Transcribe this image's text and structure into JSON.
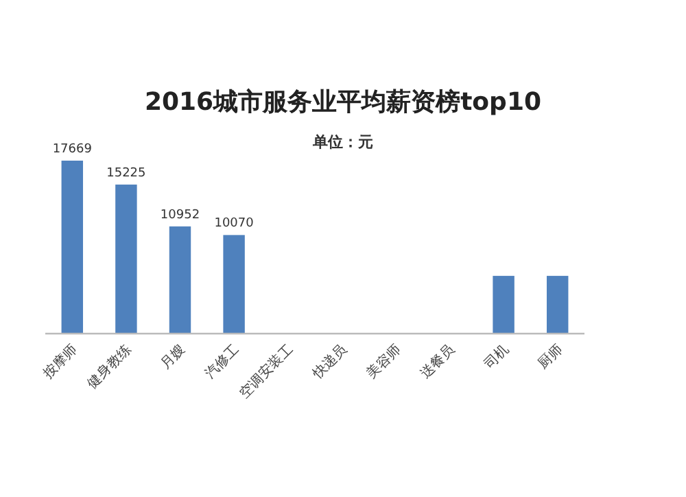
{
  "chart_data": {
    "type": "bar",
    "title": "2016城市服务业平均薪资榜top10",
    "subtitle": "单位：元",
    "categories": [
      "按摩师",
      "健身教练",
      "月嫂",
      "汽修工",
      "空调安装工",
      "快递员",
      "美容师",
      "送餐员",
      "司机",
      "厨师"
    ],
    "values": [
      17669,
      15225,
      10952,
      10070,
      null,
      null,
      null,
      null,
      5900,
      5900
    ],
    "value_labels": [
      "17669",
      "15225",
      "10952",
      "10070",
      null,
      null,
      null,
      null,
      null,
      null
    ],
    "color": "#4f81bd",
    "ylim": [
      0,
      17669
    ],
    "tick_labels": "x"
  }
}
